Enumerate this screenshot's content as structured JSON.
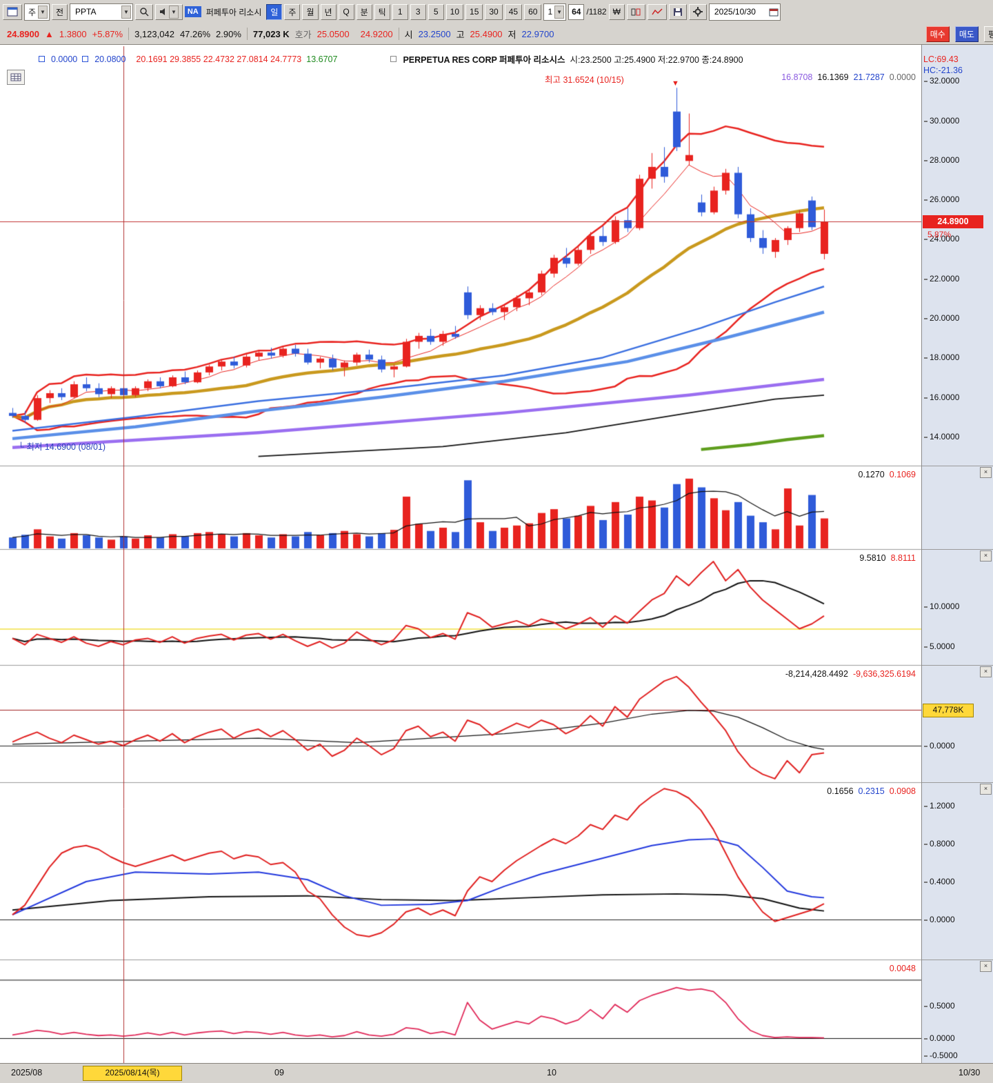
{
  "icons": {
    "close": "×",
    "down_arrow": "▼",
    "corner": "└"
  },
  "colors": {
    "up": "#e8231f",
    "down": "#2f5bd9",
    "gold": "#c9991e",
    "blue_ma": "#3a6fe0",
    "lightblue_ma": "#5a8fe8",
    "purple_ma": "#9a6ef0",
    "black_ma": "#111111",
    "green_ma": "#5f9e1e",
    "panel_red": "#e02020",
    "panel_blue": "#2238dd",
    "magenta": "#e02858",
    "yellow_line": "#f0e040",
    "crosshair": "#b03030",
    "price_line": "#c03030"
  },
  "toolbar": {
    "period_combo": "주",
    "prev_btn": "전",
    "symbol": "PPTA",
    "na_badge": "NA",
    "stock_name": "퍼페투아 리소시",
    "tabs": [
      "일",
      "주",
      "월",
      "년",
      "Q"
    ],
    "mode_tabs": [
      "분",
      "틱"
    ],
    "minutes": [
      "1",
      "3",
      "5",
      "10",
      "15",
      "30",
      "45",
      "60"
    ],
    "interval": "1",
    "bar_index": "64",
    "bar_total": "/1182",
    "won_icon": "₩",
    "date": "2025/10/30"
  },
  "quote": {
    "price": "24.8900",
    "arrow": "▲",
    "change": "1.3800",
    "change_pct": "+5.87%",
    "volume": "3,123,042",
    "turnover": "47.26%",
    "ratio": "2.90%",
    "value": "77,023 K",
    "hoga_label": "호가",
    "ask": "25.0500",
    "bid": "24.9200",
    "open_label": "시",
    "open": "23.2500",
    "high_label": "고",
    "high": "25.4900",
    "low_label": "저",
    "low": "22.9700",
    "buy": "매수",
    "sell": "매도",
    "avg": "평"
  },
  "overlay": {
    "l1a": "0.0000",
    "l1b": "20.0800",
    "ohlc": "20.1691  29.3855  22.4732  27.0814  24.7773",
    "extra": "13.6707",
    "title": "PERPETUA RES CORP  퍼페투아 리소시스",
    "title_ohlc": "시:23.2500 고:25.4900 저:22.9700 종:24.8900",
    "high_note": "최고 31.6524 (10/15)",
    "low_note": "최저 14.6900 (08/01)",
    "rv1": "16.8708",
    "rv2": "16.1369",
    "rv3": "21.7287",
    "rv4": "0.0000",
    "lc": "LC:69.43",
    "hc": "HC:-21.36",
    "price_marker": "24.8900",
    "pct_marker": "5.87%",
    "vol_v1": "0.1270",
    "vol_v2": "0.1069",
    "p2_v1": "9.5810",
    "p2_v2": "8.8111",
    "p3_v1": "-8,214,428.4492",
    "p3_v2": "-9,636,325.6194",
    "p3_marker": "47,778K",
    "p4_v1": "0.1656",
    "p4_v2": "0.2315",
    "p4_v3": "0.0908",
    "p5_v1": "0.0048"
  },
  "axis": {
    "main": [
      "32.0000",
      "30.0000",
      "28.0000",
      "26.0000",
      "24.0000",
      "22.0000",
      "20.0000",
      "18.0000",
      "16.0000",
      "14.0000"
    ],
    "p2": [
      "10.0000",
      "5.0000"
    ],
    "p3": [
      "0.0000"
    ],
    "p4": [
      "1.2000",
      "0.8000",
      "0.4000",
      "0.0000"
    ],
    "p5": [
      "0.5000",
      "0.0000",
      "-0.5000"
    ]
  },
  "time_axis": {
    "start": "2025/08",
    "crosshair_date": "2025/08/14(목)",
    "sep1": "09",
    "sep2": "10",
    "end": "10/30"
  },
  "chart_data": {
    "type": "candlestick-multi-panel",
    "symbol": "PPTA",
    "title": "PERPETUA RES CORP 퍼페투아 리소시스 일봉",
    "x_range": [
      "2025/08/01",
      "2025/10/30"
    ],
    "y_range_main": [
      12.5,
      33.7
    ],
    "last_price": 24.89,
    "crosshair_index": 9,
    "candles": [
      [
        15.2,
        15.45,
        14.95,
        15.05
      ],
      [
        15.05,
        15.3,
        14.69,
        14.85
      ],
      [
        14.85,
        16.1,
        14.8,
        15.95
      ],
      [
        15.95,
        16.35,
        15.7,
        16.2
      ],
      [
        16.2,
        16.45,
        15.85,
        16.0
      ],
      [
        16.0,
        16.8,
        15.95,
        16.65
      ],
      [
        16.65,
        17.0,
        16.3,
        16.45
      ],
      [
        16.45,
        16.7,
        16.0,
        16.15
      ],
      [
        16.15,
        16.55,
        15.95,
        16.45
      ],
      [
        16.45,
        16.6,
        16.0,
        16.1
      ],
      [
        16.1,
        16.55,
        16.0,
        16.45
      ],
      [
        16.45,
        16.9,
        16.3,
        16.8
      ],
      [
        16.8,
        17.0,
        16.45,
        16.55
      ],
      [
        16.55,
        17.1,
        16.5,
        17.0
      ],
      [
        17.0,
        17.3,
        16.65,
        16.75
      ],
      [
        16.75,
        17.35,
        16.7,
        17.25
      ],
      [
        17.25,
        17.65,
        17.1,
        17.55
      ],
      [
        17.55,
        17.9,
        17.35,
        17.8
      ],
      [
        17.8,
        18.05,
        17.45,
        17.6
      ],
      [
        17.6,
        18.15,
        17.5,
        18.05
      ],
      [
        18.05,
        18.35,
        17.85,
        18.25
      ],
      [
        18.25,
        18.5,
        17.95,
        18.1
      ],
      [
        18.1,
        18.55,
        18.0,
        18.45
      ],
      [
        18.45,
        18.65,
        18.05,
        18.2
      ],
      [
        18.2,
        18.45,
        17.65,
        17.75
      ],
      [
        17.75,
        18.05,
        17.45,
        17.95
      ],
      [
        17.95,
        18.15,
        17.35,
        17.5
      ],
      [
        17.5,
        17.85,
        17.05,
        17.75
      ],
      [
        17.75,
        18.25,
        17.6,
        18.15
      ],
      [
        18.15,
        18.4,
        17.75,
        17.9
      ],
      [
        17.9,
        18.1,
        17.25,
        17.4
      ],
      [
        17.4,
        17.65,
        17.0,
        17.55
      ],
      [
        17.55,
        18.95,
        17.5,
        18.8
      ],
      [
        18.8,
        19.25,
        18.45,
        19.1
      ],
      [
        19.1,
        19.45,
        18.65,
        18.8
      ],
      [
        18.8,
        19.35,
        18.6,
        19.2
      ],
      [
        19.2,
        19.6,
        18.95,
        19.05
      ],
      [
        21.3,
        21.6,
        19.95,
        20.15
      ],
      [
        20.15,
        20.65,
        19.9,
        20.5
      ],
      [
        20.5,
        20.75,
        20.15,
        20.3
      ],
      [
        20.3,
        20.65,
        19.9,
        20.55
      ],
      [
        20.55,
        21.15,
        20.35,
        21.0
      ],
      [
        21.0,
        21.45,
        20.65,
        21.3
      ],
      [
        21.3,
        22.4,
        21.15,
        22.25
      ],
      [
        22.25,
        23.2,
        22.05,
        23.05
      ],
      [
        23.05,
        23.55,
        22.55,
        22.75
      ],
      [
        22.75,
        23.65,
        22.65,
        23.45
      ],
      [
        23.45,
        24.35,
        23.25,
        24.15
      ],
      [
        24.15,
        24.65,
        23.65,
        23.85
      ],
      [
        23.85,
        25.15,
        23.75,
        24.95
      ],
      [
        24.95,
        25.55,
        24.35,
        24.55
      ],
      [
        24.55,
        27.25,
        24.45,
        27.05
      ],
      [
        27.05,
        28.35,
        26.55,
        27.65
      ],
      [
        27.65,
        28.65,
        26.85,
        27.15
      ],
      [
        30.45,
        31.65,
        28.45,
        28.65
      ],
      [
        27.95,
        30.35,
        27.75,
        28.25
      ],
      [
        25.85,
        26.25,
        25.15,
        25.35
      ],
      [
        25.35,
        26.65,
        25.25,
        26.45
      ],
      [
        26.45,
        27.55,
        26.25,
        27.35
      ],
      [
        27.35,
        27.65,
        25.05,
        25.25
      ],
      [
        25.25,
        25.55,
        23.85,
        24.05
      ],
      [
        24.05,
        24.45,
        23.25,
        23.55
      ],
      [
        23.35,
        24.05,
        23.05,
        23.95
      ],
      [
        23.95,
        24.65,
        23.7,
        24.55
      ],
      [
        24.55,
        25.45,
        24.35,
        25.3
      ],
      [
        25.95,
        26.15,
        24.45,
        24.6
      ],
      [
        23.25,
        25.49,
        22.97,
        24.89
      ]
    ],
    "volumes": [
      0.02,
      0.025,
      0.035,
      0.022,
      0.018,
      0.028,
      0.024,
      0.02,
      0.016,
      0.022,
      0.018,
      0.024,
      0.02,
      0.026,
      0.022,
      0.028,
      0.03,
      0.026,
      0.022,
      0.028,
      0.024,
      0.02,
      0.026,
      0.022,
      0.03,
      0.024,
      0.028,
      0.032,
      0.026,
      0.022,
      0.028,
      0.034,
      0.095,
      0.045,
      0.032,
      0.038,
      0.03,
      0.125,
      0.048,
      0.032,
      0.038,
      0.042,
      0.046,
      0.065,
      0.072,
      0.055,
      0.06,
      0.078,
      0.052,
      0.085,
      0.062,
      0.095,
      0.088,
      0.075,
      0.118,
      0.128,
      0.112,
      0.092,
      0.07,
      0.085,
      0.06,
      0.048,
      0.035,
      0.11,
      0.042,
      0.098,
      0.055
    ],
    "lines": {
      "blue_ma": [
        [
          0,
          14.3
        ],
        [
          10,
          15.0
        ],
        [
          20,
          15.8
        ],
        [
          30,
          16.4
        ],
        [
          40,
          17.1
        ],
        [
          48,
          18.0
        ],
        [
          56,
          19.5
        ],
        [
          62,
          20.8
        ],
        [
          66,
          21.6
        ]
      ],
      "lightblue_ma": [
        [
          0,
          13.9
        ],
        [
          10,
          14.5
        ],
        [
          20,
          15.3
        ],
        [
          30,
          16.0
        ],
        [
          40,
          16.8
        ],
        [
          50,
          17.8
        ],
        [
          58,
          19.0
        ],
        [
          66,
          20.3
        ]
      ],
      "purple_ma": [
        [
          0,
          13.45
        ],
        [
          20,
          14.2
        ],
        [
          40,
          15.2
        ],
        [
          55,
          16.1
        ],
        [
          66,
          16.9
        ]
      ],
      "black_ma": [
        [
          20,
          13.0
        ],
        [
          35,
          13.5
        ],
        [
          45,
          14.2
        ],
        [
          55,
          15.2
        ],
        [
          62,
          15.9
        ],
        [
          66,
          16.1
        ]
      ],
      "green_ma": [
        [
          56,
          13.35
        ],
        [
          60,
          13.6
        ],
        [
          63,
          13.85
        ],
        [
          66,
          14.05
        ]
      ]
    },
    "panel2": {
      "yellow_level": 7.2,
      "red": [
        6.0,
        5.2,
        6.5,
        6.0,
        5.5,
        6.2,
        5.4,
        5.0,
        5.6,
        5.2,
        5.8,
        6.0,
        5.5,
        6.2,
        5.4,
        6.0,
        6.3,
        6.5,
        5.8,
        6.4,
        6.6,
        5.9,
        6.5,
        5.7,
        5.0,
        5.6,
        4.8,
        5.4,
        6.8,
        5.9,
        5.2,
        5.8,
        7.6,
        7.2,
        6.1,
        6.6,
        5.9,
        9.2,
        8.6,
        7.4,
        7.8,
        8.2,
        7.6,
        8.4,
        8.0,
        7.2,
        7.8,
        8.6,
        7.4,
        8.8,
        7.9,
        9.4,
        10.8,
        11.6,
        13.8,
        12.6,
        14.2,
        15.6,
        13.2,
        14.6,
        12.4,
        10.8,
        9.6,
        8.4,
        7.2,
        7.8,
        8.8
      ]
    },
    "panel3": {
      "marker_level_millions": 47.778,
      "red_millions": [
        5,
        12,
        18,
        10,
        4,
        14,
        8,
        2,
        6,
        0,
        8,
        14,
        6,
        16,
        4,
        12,
        18,
        22,
        10,
        18,
        22,
        12,
        20,
        8,
        -6,
        2,
        -14,
        -6,
        10,
        0,
        -12,
        -4,
        20,
        26,
        12,
        18,
        6,
        34,
        28,
        14,
        22,
        30,
        24,
        34,
        28,
        16,
        24,
        40,
        26,
        52,
        38,
        62,
        74,
        86,
        92,
        78,
        58,
        40,
        20,
        -8,
        -28,
        -38,
        -44,
        -20,
        -36,
        -12,
        -9.6
      ],
      "black": [
        [
          0,
          2
        ],
        [
          10,
          6
        ],
        [
          20,
          10
        ],
        [
          28,
          4
        ],
        [
          34,
          10
        ],
        [
          40,
          16
        ],
        [
          44,
          22
        ],
        [
          48,
          30
        ],
        [
          52,
          42
        ],
        [
          55,
          47
        ],
        [
          57,
          46
        ],
        [
          59,
          38
        ],
        [
          61,
          24
        ],
        [
          63,
          8
        ],
        [
          65,
          -2
        ],
        [
          66,
          -5
        ]
      ]
    },
    "panel4": {
      "red": [
        0.05,
        0.15,
        0.35,
        0.55,
        0.7,
        0.76,
        0.78,
        0.74,
        0.66,
        0.6,
        0.56,
        0.6,
        0.64,
        0.68,
        0.62,
        0.66,
        0.7,
        0.72,
        0.64,
        0.68,
        0.66,
        0.58,
        0.6,
        0.5,
        0.3,
        0.22,
        0.05,
        -0.08,
        -0.16,
        -0.18,
        -0.14,
        -0.05,
        0.08,
        0.12,
        0.05,
        0.1,
        0.04,
        0.3,
        0.45,
        0.4,
        0.52,
        0.62,
        0.7,
        0.78,
        0.85,
        0.8,
        0.88,
        1.0,
        0.95,
        1.1,
        1.05,
        1.2,
        1.3,
        1.38,
        1.35,
        1.28,
        1.15,
        0.95,
        0.7,
        0.45,
        0.25,
        0.08,
        -0.02,
        0.02,
        0.06,
        0.1,
        0.166
      ],
      "blue": [
        [
          0,
          0.05
        ],
        [
          6,
          0.4
        ],
        [
          10,
          0.5
        ],
        [
          16,
          0.48
        ],
        [
          20,
          0.5
        ],
        [
          24,
          0.42
        ],
        [
          27,
          0.25
        ],
        [
          30,
          0.15
        ],
        [
          34,
          0.16
        ],
        [
          37,
          0.2
        ],
        [
          40,
          0.35
        ],
        [
          43,
          0.48
        ],
        [
          46,
          0.58
        ],
        [
          49,
          0.68
        ],
        [
          52,
          0.78
        ],
        [
          55,
          0.84
        ],
        [
          57,
          0.85
        ],
        [
          59,
          0.78
        ],
        [
          61,
          0.55
        ],
        [
          63,
          0.3
        ],
        [
          65,
          0.24
        ],
        [
          66,
          0.23
        ]
      ],
      "black": [
        [
          0,
          0.1
        ],
        [
          8,
          0.2
        ],
        [
          16,
          0.24
        ],
        [
          24,
          0.25
        ],
        [
          30,
          0.21
        ],
        [
          36,
          0.2
        ],
        [
          42,
          0.23
        ],
        [
          48,
          0.26
        ],
        [
          54,
          0.27
        ],
        [
          58,
          0.26
        ],
        [
          61,
          0.22
        ],
        [
          64,
          0.12
        ],
        [
          66,
          0.09
        ]
      ]
    },
    "panel5": {
      "levels": [
        0.9,
        0.0
      ],
      "magenta": [
        0.05,
        0.08,
        0.12,
        0.1,
        0.06,
        0.09,
        0.06,
        0.04,
        0.05,
        0.03,
        0.05,
        0.08,
        0.05,
        0.09,
        0.05,
        0.08,
        0.1,
        0.11,
        0.07,
        0.1,
        0.09,
        0.06,
        0.09,
        0.05,
        0.03,
        0.05,
        0.02,
        0.04,
        0.1,
        0.05,
        0.03,
        0.06,
        0.16,
        0.14,
        0.07,
        0.1,
        0.05,
        0.55,
        0.28,
        0.14,
        0.2,
        0.26,
        0.22,
        0.34,
        0.3,
        0.22,
        0.28,
        0.44,
        0.3,
        0.52,
        0.4,
        0.58,
        0.66,
        0.72,
        0.78,
        0.74,
        0.76,
        0.72,
        0.55,
        0.3,
        0.12,
        0.04,
        0.01,
        0.02,
        0.01,
        0.01,
        0.005
      ]
    }
  }
}
